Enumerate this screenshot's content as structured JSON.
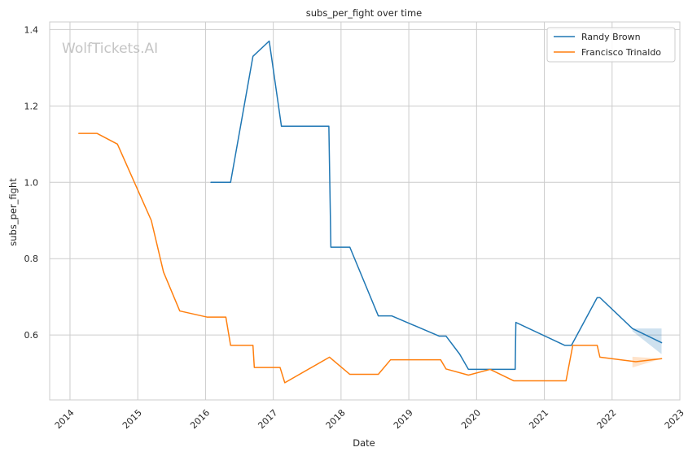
{
  "chart_data": {
    "type": "line",
    "title": "subs_per_fight over time",
    "xlabel": "Date",
    "ylabel": "subs_per_fight",
    "watermark": "WolfTickets.AI",
    "xlim": [
      2013.7,
      2023.0
    ],
    "ylim": [
      0.43,
      1.42
    ],
    "x_ticks": [
      2014,
      2015,
      2016,
      2017,
      2018,
      2019,
      2020,
      2021,
      2022,
      2023
    ],
    "x_tick_labels": [
      "2014",
      "2015",
      "2016",
      "2017",
      "2018",
      "2019",
      "2020",
      "2021",
      "2022",
      "2023"
    ],
    "y_ticks": [
      0.6,
      0.8,
      1.0,
      1.2,
      1.4
    ],
    "y_tick_labels": [
      "0.6",
      "0.8",
      "1.0",
      "1.2",
      "1.4"
    ],
    "grid": true,
    "legend_position": "top-right",
    "series": [
      {
        "name": "Randy Brown",
        "color": "#1f77b4",
        "x": [
          2016.08,
          2016.37,
          2016.7,
          2016.73,
          2016.94,
          2017.12,
          2017.82,
          2017.85,
          2018.13,
          2018.55,
          2018.75,
          2019.45,
          2019.55,
          2019.75,
          2019.88,
          2020.57,
          2020.58,
          2021.3,
          2021.4,
          2021.78,
          2021.82,
          2022.3,
          2022.73
        ],
        "values": [
          1.0,
          1.0,
          1.33,
          1.335,
          1.37,
          1.147,
          1.147,
          0.83,
          0.83,
          0.65,
          0.65,
          0.597,
          0.597,
          0.55,
          0.51,
          0.51,
          0.633,
          0.573,
          0.573,
          0.698,
          0.698,
          0.617,
          0.58
        ],
        "band": {
          "x": [
            2022.3,
            2022.73
          ],
          "lower": [
            0.61,
            0.55
          ],
          "upper": [
            0.617,
            0.617
          ]
        }
      },
      {
        "name": "Francisco Trinaldo",
        "color": "#ff7f0e",
        "x": [
          2014.13,
          2014.4,
          2014.7,
          2015.2,
          2015.38,
          2015.62,
          2016.02,
          2016.3,
          2016.37,
          2016.7,
          2016.72,
          2017.1,
          2017.17,
          2017.83,
          2018.13,
          2018.55,
          2018.73,
          2019.47,
          2019.55,
          2019.88,
          2020.2,
          2020.55,
          2021.32,
          2021.42,
          2021.78,
          2021.82,
          2022.35,
          2022.73
        ],
        "values": [
          1.128,
          1.128,
          1.1,
          0.9,
          0.765,
          0.663,
          0.647,
          0.647,
          0.573,
          0.573,
          0.515,
          0.515,
          0.475,
          0.542,
          0.497,
          0.497,
          0.535,
          0.535,
          0.511,
          0.495,
          0.51,
          0.48,
          0.48,
          0.573,
          0.573,
          0.542,
          0.53,
          0.538
        ],
        "band": {
          "x": [
            2022.3,
            2022.73
          ],
          "lower": [
            0.515,
            0.538
          ],
          "upper": [
            0.543,
            0.538
          ]
        }
      }
    ]
  }
}
